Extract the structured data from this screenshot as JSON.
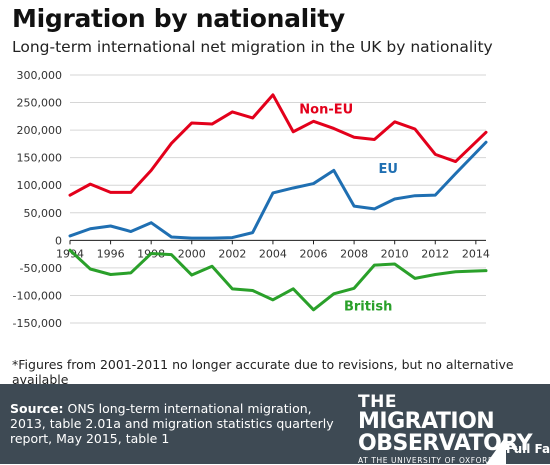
{
  "header": {
    "title": "Migration by nationality",
    "subtitle": "Long-term international net migration in the UK by nationality"
  },
  "footnote": "*Figures from 2001-2011 no longer accurate due to revisions, but no alternative available",
  "footer": {
    "source_label": "Source:",
    "source_text": "ONS long-term international migration, 2013, table 2.01a and migration statistics quarterly report, May 2015, table 1",
    "logo_line1": "THE",
    "logo_line2": "MIGRATION",
    "logo_line3": "OBSERVATORY",
    "logo_line4": "AT THE UNIVERSITY OF OXFORD",
    "fullfact": "Full Fact"
  },
  "chart_data": {
    "type": "line",
    "xlim": [
      1994,
      2014.5
    ],
    "ylim": [
      -150000,
      300000
    ],
    "x_ticks": [
      "1994",
      "1996",
      "1998",
      "2000",
      "2002",
      "2004",
      "2006",
      "2008",
      "2010",
      "2012",
      "2014"
    ],
    "y_ticks": [
      "300,000",
      "250,000",
      "200,000",
      "150,000",
      "100,000",
      "50,000",
      "0",
      "-50,000",
      "-100,000",
      "-150,000"
    ],
    "grid": "horizontal",
    "x": [
      1994,
      1995,
      1996,
      1997,
      1998,
      1999,
      2000,
      2001,
      2002,
      2003,
      2004,
      2005,
      2006,
      2007,
      2008,
      2009,
      2010,
      2011,
      2012,
      2013,
      2014.5
    ],
    "series": [
      {
        "name": "Non-EU",
        "color": "#e3001b",
        "label_at": [
          2005.3,
          230000
        ],
        "values": [
          82000,
          102000,
          87000,
          87000,
          127000,
          176000,
          213000,
          211000,
          233000,
          222000,
          264000,
          197000,
          216000,
          203000,
          187000,
          183000,
          215000,
          202000,
          156000,
          143000,
          196000
        ]
      },
      {
        "name": "EU",
        "color": "#1f6fb2",
        "label_at": [
          2009.2,
          122000
        ],
        "values": [
          8000,
          21000,
          26000,
          16000,
          32000,
          6000,
          4000,
          4000,
          5000,
          14000,
          86000,
          95000,
          103000,
          127000,
          62000,
          57000,
          75000,
          81000,
          82000,
          121000,
          178000
        ]
      },
      {
        "name": "British",
        "color": "#2aa02a",
        "label_at": [
          2007.5,
          -127000
        ],
        "values": [
          -18000,
          -52000,
          -62000,
          -59000,
          -24000,
          -26000,
          -63000,
          -47000,
          -88000,
          -91000,
          -108000,
          -88000,
          -126000,
          -97000,
          -87000,
          -45000,
          -43000,
          -69000,
          -62000,
          -57000,
          -55000
        ]
      }
    ]
  }
}
